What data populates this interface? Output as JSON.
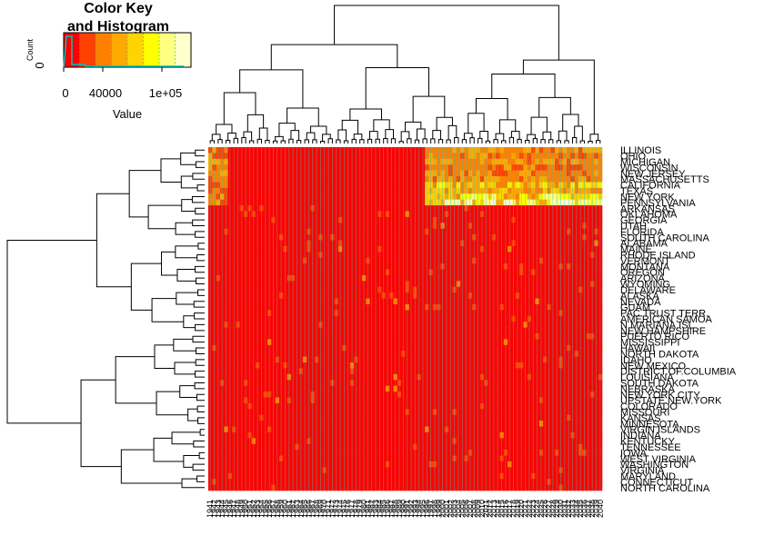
{
  "color_key": {
    "title_line1": "Color Key",
    "title_line2": "and Histogram",
    "x_label": "Value",
    "y_label": "Count",
    "x_ticks": [
      "0",
      "40000",
      "1e+05"
    ],
    "y_ticks": [
      "0"
    ],
    "colors": [
      "#ff0000",
      "#ff4000",
      "#ff8000",
      "#ffaa00",
      "#ffd400",
      "#ffff00",
      "#ffff80",
      "#ffffcc"
    ],
    "histogram_color": "#00c0c0"
  },
  "chart_data": {
    "type": "heatmap",
    "title": "",
    "xlabel": "",
    "ylabel": "",
    "rows": [
      "ILLINOIS",
      "OHIO",
      "MICHIGAN",
      "WISCONSIN",
      "NEW JERSEY",
      "MASSACHUSETTS",
      "CALIFORNIA",
      "TEXAS",
      "NEW YORK",
      "PENNSYLVANIA",
      "ARKANSAS",
      "OKLAHOMA",
      "GEORGIA",
      "UTAH",
      "FLORIDA",
      "SOUTH CAROLINA",
      "ALABAMA",
      "MAINE",
      "RHODE ISLAND",
      "VERMONT",
      "MONTANA",
      "OREGON",
      "ARIZONA",
      "WYOMING",
      "DELAWARE",
      "ALASKA",
      "NEVADA",
      "GUAM",
      "PAC.TRUST TERR.",
      "AMERICAN SAMOA",
      "N.MARIANA.ISL",
      "NEW HAMPSHIRE",
      "PUERTO RICO",
      "MISSISSIPPI",
      "HAWAII",
      "NORTH DAKOTA",
      "IDAHO",
      "NEW MEXICO",
      "DISTRICT.OF.COLUMBIA",
      "LOUISIANA",
      "SOUTH DAKOTA",
      "NEBRASKA",
      "NEW YORK CITY",
      "UPSTATE.NEW.YORK",
      "COLORADO",
      "MISSOURI",
      "KANSAS",
      "MINNESOTA",
      "VIRGIN ISLANDS",
      "INDIANA",
      "KENTUCKY",
      "TENNESSEE",
      "IOWA",
      "WEST VIRGINIA",
      "WASHINGTON",
      "VIRGINIA",
      "MARYLAND",
      "CONNECTICUT",
      "NORTH CAROLINA"
    ],
    "columns": [
      "1941",
      "1942",
      "1943",
      "1944",
      "1945",
      "1946",
      "1947",
      "1948",
      "1949",
      "1950",
      "1951",
      "1952",
      "1953",
      "1954",
      "1955",
      "1956",
      "1957",
      "1958",
      "1959",
      "1960",
      "1961",
      "1962",
      "1963",
      "1964",
      "1965",
      "1966",
      "1967",
      "1968",
      "1969",
      "1970",
      "1971",
      "1972",
      "1973",
      "1974",
      "1975",
      "1976",
      "1977",
      "1978",
      "1979",
      "1980",
      "1981",
      "1982",
      "1983",
      "1984",
      "1985",
      "1986",
      "1987",
      "1988",
      "1989",
      "1990",
      "1991",
      "1992",
      "1993",
      "1994",
      "1995",
      "1996",
      "1997",
      "1998",
      "1999",
      "2000",
      "2001",
      "2002",
      "2003",
      "2004",
      "2005",
      "2006",
      "2007",
      "2008",
      "2009",
      "2010",
      "2011",
      "2012",
      "2013",
      "2014",
      "2015",
      "2016",
      "2017",
      "2018",
      "2019",
      "2020",
      "2021",
      "2022",
      "2023",
      "2024",
      "2025",
      "2026",
      "2027",
      "2028",
      "2029",
      "2030",
      "2031",
      "2032",
      "2033",
      "2034",
      "2035",
      "2036",
      "2037",
      "2038",
      "2039",
      "2040"
    ],
    "value_range": [
      0,
      130000
    ],
    "legend_position": "top-left"
  }
}
